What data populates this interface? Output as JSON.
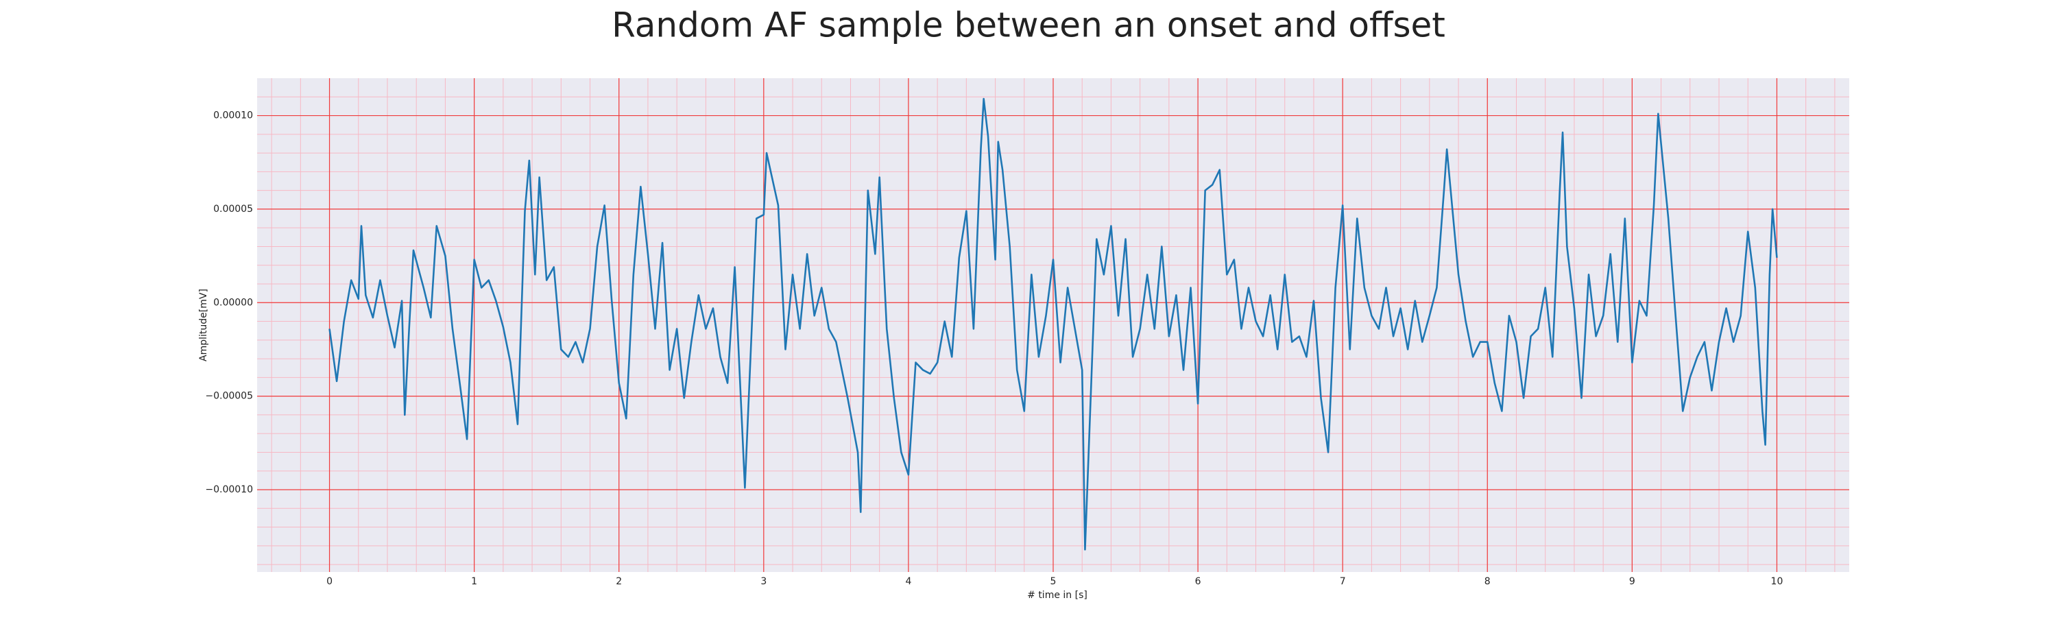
{
  "chart_data": {
    "type": "line",
    "title": "Random AF sample between an onset and offset",
    "x_label": "# time in [s]",
    "y_label": "Amplitude[mV]",
    "color": "#1f77b4",
    "grid": true,
    "minor_grid": {
      "x": 0.2,
      "y": 1e-05
    },
    "xlim": [
      -0.5,
      10.5
    ],
    "ylim": [
      -0.000144,
      0.00012
    ],
    "xticks": [
      0,
      1,
      2,
      3,
      4,
      5,
      6,
      7,
      8,
      9,
      10
    ],
    "yticks": [
      {
        "value": -0.0001,
        "label": "−0.00010"
      },
      {
        "value": -5e-05,
        "label": "−0.00005"
      },
      {
        "value": 0,
        "label": "0.00000"
      },
      {
        "value": 5e-05,
        "label": "0.00005"
      },
      {
        "value": 0.0001,
        "label": "0.00010"
      }
    ],
    "x": [
      0,
      0.05,
      0.1,
      0.15,
      0.2,
      0.22,
      0.25,
      0.3,
      0.35,
      0.4,
      0.45,
      0.5,
      0.52,
      0.55,
      0.58,
      0.65,
      0.7,
      0.74,
      0.8,
      0.85,
      0.9,
      0.95,
      1.0,
      1.05,
      1.1,
      1.15,
      1.2,
      1.25,
      1.3,
      1.35,
      1.38,
      1.42,
      1.45,
      1.5,
      1.55,
      1.6,
      1.65,
      1.7,
      1.75,
      1.8,
      1.85,
      1.9,
      1.95,
      2.0,
      2.05,
      2.1,
      2.15,
      2.2,
      2.25,
      2.3,
      2.35,
      2.4,
      2.45,
      2.5,
      2.55,
      2.6,
      2.65,
      2.7,
      2.75,
      2.8,
      2.85,
      2.87,
      2.95,
      3.0,
      3.02,
      3.1,
      3.15,
      3.2,
      3.25,
      3.3,
      3.35,
      3.4,
      3.45,
      3.5,
      3.58,
      3.65,
      3.67,
      3.72,
      3.77,
      3.8,
      3.85,
      3.9,
      3.95,
      4.0,
      4.05,
      4.1,
      4.15,
      4.2,
      4.25,
      4.3,
      4.35,
      4.4,
      4.45,
      4.5,
      4.52,
      4.55,
      4.6,
      4.62,
      4.65,
      4.7,
      4.75,
      4.8,
      4.85,
      4.9,
      4.95,
      5.0,
      5.05,
      5.1,
      5.15,
      5.2,
      5.22,
      5.3,
      5.35,
      5.4,
      5.45,
      5.5,
      5.55,
      5.6,
      5.65,
      5.7,
      5.75,
      5.8,
      5.85,
      5.9,
      5.95,
      6.0,
      6.05,
      6.1,
      6.15,
      6.2,
      6.25,
      6.3,
      6.35,
      6.4,
      6.45,
      6.5,
      6.55,
      6.6,
      6.65,
      6.7,
      6.75,
      6.8,
      6.85,
      6.9,
      6.95,
      7.0,
      7.05,
      7.1,
      7.15,
      7.2,
      7.25,
      7.3,
      7.35,
      7.4,
      7.45,
      7.5,
      7.55,
      7.6,
      7.65,
      7.7,
      7.72,
      7.8,
      7.85,
      7.9,
      7.95,
      8.0,
      8.05,
      8.1,
      8.15,
      8.2,
      8.25,
      8.3,
      8.35,
      8.4,
      8.45,
      8.5,
      8.52,
      8.55,
      8.6,
      8.65,
      8.7,
      8.75,
      8.8,
      8.85,
      8.9,
      8.95,
      9.0,
      9.05,
      9.1,
      9.15,
      9.18,
      9.25,
      9.3,
      9.35,
      9.4,
      9.45,
      9.5,
      9.55,
      9.6,
      9.65,
      9.7,
      9.75,
      9.8,
      9.85,
      9.9,
      9.92,
      9.95,
      9.97,
      10.0
    ],
    "values": [
      -1.4e-05,
      -4.2e-05,
      -1e-05,
      1.2e-05,
      2e-06,
      4.1e-05,
      4e-06,
      -8e-06,
      1.2e-05,
      -7e-06,
      -2.4e-05,
      1e-06,
      -6e-05,
      -1.4e-05,
      2.8e-05,
      8e-06,
      -8e-06,
      4.1e-05,
      2.5e-05,
      -1.4e-05,
      -4.3e-05,
      -7.3e-05,
      2.3e-05,
      8e-06,
      1.2e-05,
      1e-06,
      -1.3e-05,
      -3.2e-05,
      -6.5e-05,
      4.9e-05,
      7.6e-05,
      1.5e-05,
      6.7e-05,
      1.2e-05,
      1.9e-05,
      -2.5e-05,
      -2.9e-05,
      -2.1e-05,
      -3.2e-05,
      -1.4e-05,
      3e-05,
      5.2e-05,
      1e-06,
      -4.3e-05,
      -6.2e-05,
      1.5e-05,
      6.2e-05,
      2.6e-05,
      -1.4e-05,
      3.2e-05,
      -3.6e-05,
      -1.4e-05,
      -5.1e-05,
      -2.1e-05,
      4e-06,
      -1.4e-05,
      -3e-06,
      -2.9e-05,
      -4.3e-05,
      1.9e-05,
      -6.5e-05,
      -9.9e-05,
      4.5e-05,
      4.7e-05,
      8e-05,
      5.2e-05,
      -2.5e-05,
      1.5e-05,
      -1.4e-05,
      2.6e-05,
      -7e-06,
      8e-06,
      -1.4e-05,
      -2.1e-05,
      -5.1e-05,
      -8e-05,
      -0.000112,
      6e-05,
      2.6e-05,
      6.7e-05,
      -1.4e-05,
      -5.1e-05,
      -8e-05,
      -9.2e-05,
      -3.2e-05,
      -3.6e-05,
      -3.8e-05,
      -3.2e-05,
      -1e-05,
      -2.9e-05,
      2.4e-05,
      4.9e-05,
      -1.4e-05,
      8.2e-05,
      0.000109,
      8.9e-05,
      2.3e-05,
      8.6e-05,
      7.1e-05,
      3e-05,
      -3.6e-05,
      -5.8e-05,
      1.5e-05,
      -2.9e-05,
      -7e-06,
      2.3e-05,
      -3.2e-05,
      8e-06,
      -1.4e-05,
      -3.6e-05,
      -0.000132,
      3.4e-05,
      1.5e-05,
      4.1e-05,
      -7e-06,
      3.4e-05,
      -2.9e-05,
      -1.4e-05,
      1.5e-05,
      -1.4e-05,
      3e-05,
      -1.8e-05,
      4e-06,
      -3.6e-05,
      8e-06,
      -5.4e-05,
      6e-05,
      6.3e-05,
      7.1e-05,
      1.5e-05,
      2.3e-05,
      -1.4e-05,
      8e-06,
      -1e-05,
      -1.8e-05,
      4e-06,
      -2.5e-05,
      1.5e-05,
      -2.1e-05,
      -1.8e-05,
      -2.9e-05,
      1e-06,
      -5.1e-05,
      -8e-05,
      8e-06,
      5.2e-05,
      -2.5e-05,
      4.5e-05,
      8e-06,
      -7e-06,
      -1.4e-05,
      8e-06,
      -1.8e-05,
      -3e-06,
      -2.5e-05,
      1e-06,
      -2.1e-05,
      -7e-06,
      8e-06,
      6e-05,
      8.2e-05,
      1.5e-05,
      -1e-05,
      -2.9e-05,
      -2.1e-05,
      -2.1e-05,
      -4.3e-05,
      -5.8e-05,
      -7e-06,
      -2.1e-05,
      -5.1e-05,
      -1.8e-05,
      -1.4e-05,
      8e-06,
      -2.9e-05,
      6e-05,
      9.1e-05,
      3e-05,
      -3e-06,
      -5.1e-05,
      1.5e-05,
      -1.8e-05,
      -7e-06,
      2.6e-05,
      -2.1e-05,
      4.5e-05,
      -3.2e-05,
      1e-06,
      -7e-06,
      5.2e-05,
      0.000101,
      4.5e-05,
      -7e-06,
      -5.8e-05,
      -4e-05,
      -2.9e-05,
      -2.1e-05,
      -4.7e-05,
      -2.1e-05,
      -3e-06,
      -2.1e-05,
      -7e-06,
      3.8e-05,
      8e-06,
      -5.8e-05,
      -7.6e-05,
      1.5e-05,
      5e-05,
      2.4e-05
    ]
  }
}
